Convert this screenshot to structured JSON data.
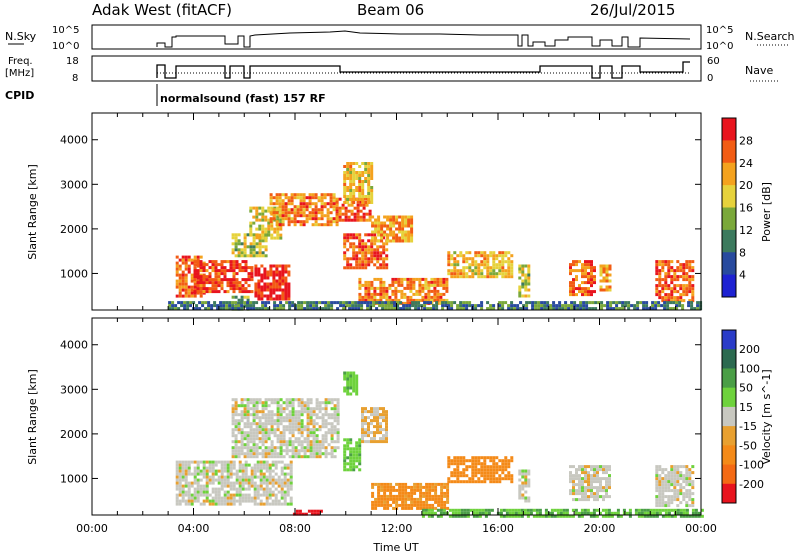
{
  "header": {
    "station": "Adak West (fitACF)",
    "beam": "Beam 06",
    "date": "26/Jul/2015"
  },
  "top_panels": {
    "nsky_label": "N.Sky",
    "nsky_ticks": [
      "10^5",
      "10^0"
    ],
    "nsearch_label": "N.Search",
    "nsearch_ticks": [
      "10^5",
      "10^0"
    ],
    "freq_label_line1": "Freq.",
    "freq_label_line2": "[MHz]",
    "freq_ticks": [
      "18",
      "8"
    ],
    "nave_label": "Nave",
    "nave_ticks": [
      "60",
      "0"
    ],
    "cpid_label": "CPID",
    "cpid_text": "normalsound (fast) 157 RF"
  },
  "colorbars": {
    "power": {
      "title": "Power [dB]",
      "ticks": [
        "28",
        "24",
        "20",
        "16",
        "12",
        "8",
        "4"
      ],
      "colors": [
        "#e8141e",
        "#f25c14",
        "#f4a21e",
        "#e6d23c",
        "#7aa83a",
        "#3c7a5e",
        "#284a9e",
        "#1e22d2"
      ]
    },
    "velocity": {
      "title": "Velocity [m s^-1]",
      "ticks": [
        "200",
        "100",
        "50",
        "15",
        "-15",
        "-50",
        "-100",
        "-200"
      ],
      "colors": [
        "#2a3cc8",
        "#2c6a50",
        "#4a9e46",
        "#6ed23c",
        "#c8c8c0",
        "#e8a030",
        "#f48a18",
        "#f46a14",
        "#e8141e"
      ]
    }
  },
  "chart_data": [
    {
      "type": "heatmap",
      "panel": "power",
      "ylabel": "Slant Range [km]",
      "yticks": [
        1000,
        2000,
        3000,
        4000
      ],
      "ylim": [
        180,
        4600
      ],
      "xlim_hours": [
        0,
        24
      ],
      "units": "dB",
      "regions": [
        {
          "t": [
            3.3,
            4.4
          ],
          "r": [
            500,
            1400
          ],
          "level": 24
        },
        {
          "t": [
            4.0,
            6.3
          ],
          "r": [
            600,
            1300
          ],
          "level": 26
        },
        {
          "t": [
            6.4,
            7.8
          ],
          "r": [
            450,
            1200
          ],
          "level": 28
        },
        {
          "t": [
            5.5,
            6.2
          ],
          "r": [
            200,
            500
          ],
          "level": 10
        },
        {
          "t": [
            5.5,
            6.9
          ],
          "r": [
            1400,
            1900
          ],
          "level": 14
        },
        {
          "t": [
            6.2,
            7.5
          ],
          "r": [
            1800,
            2500
          ],
          "level": 16
        },
        {
          "t": [
            7.0,
            9.7
          ],
          "r": [
            2100,
            2800
          ],
          "level": 22
        },
        {
          "t": [
            9.6,
            11.0
          ],
          "r": [
            2200,
            2700
          ],
          "level": 24
        },
        {
          "t": [
            9.9,
            11.6
          ],
          "r": [
            1100,
            1900
          ],
          "level": 24
        },
        {
          "t": [
            9.9,
            11.0
          ],
          "r": [
            2600,
            3500
          ],
          "level": 18
        },
        {
          "t": [
            11.0,
            12.6
          ],
          "r": [
            1700,
            2300
          ],
          "level": 20
        },
        {
          "t": [
            10.5,
            14.0
          ],
          "r": [
            350,
            900
          ],
          "level": 22
        },
        {
          "t": [
            14.0,
            16.5
          ],
          "r": [
            900,
            1500
          ],
          "level": 18
        },
        {
          "t": [
            16.8,
            17.2
          ],
          "r": [
            500,
            1200
          ],
          "level": 14
        },
        {
          "t": [
            18.8,
            19.8
          ],
          "r": [
            500,
            1300
          ],
          "level": 24
        },
        {
          "t": [
            20.0,
            20.4
          ],
          "r": [
            600,
            1200
          ],
          "level": 20
        },
        {
          "t": [
            22.2,
            23.7
          ],
          "r": [
            400,
            1300
          ],
          "level": 24
        },
        {
          "t": [
            3.0,
            24.0
          ],
          "r": [
            180,
            380
          ],
          "level": 8
        }
      ]
    },
    {
      "type": "heatmap",
      "panel": "velocity",
      "ylabel": "Slant Range [km]",
      "xlabel": "Time UT",
      "xticks": [
        "00:00",
        "04:00",
        "08:00",
        "12:00",
        "16:00",
        "20:00",
        "00:00"
      ],
      "yticks": [
        1000,
        2000,
        3000,
        4000
      ],
      "ylim": [
        180,
        4600
      ],
      "xlim_hours": [
        0,
        24
      ],
      "units": "m s^-1",
      "regions": [
        {
          "t": [
            3.3,
            7.8
          ],
          "r": [
            450,
            1400
          ],
          "v": 0
        },
        {
          "t": [
            5.5,
            9.7
          ],
          "r": [
            1500,
            2800
          ],
          "v": 0
        },
        {
          "t": [
            9.9,
            10.4
          ],
          "r": [
            2900,
            3400
          ],
          "v": 40
        },
        {
          "t": [
            9.9,
            10.6
          ],
          "r": [
            1200,
            1900
          ],
          "v": 40
        },
        {
          "t": [
            10.6,
            11.6
          ],
          "r": [
            1800,
            2600
          ],
          "v": -20
        },
        {
          "t": [
            11.0,
            14.0
          ],
          "r": [
            350,
            900
          ],
          "v": -60
        },
        {
          "t": [
            14.0,
            16.5
          ],
          "r": [
            900,
            1500
          ],
          "v": -80
        },
        {
          "t": [
            16.8,
            17.2
          ],
          "r": [
            500,
            1200
          ],
          "v": 0
        },
        {
          "t": [
            18.8,
            20.4
          ],
          "r": [
            500,
            1300
          ],
          "v": 0
        },
        {
          "t": [
            22.2,
            23.7
          ],
          "r": [
            400,
            1300
          ],
          "v": 0
        },
        {
          "t": [
            7.8,
            9.0
          ],
          "r": [
            180,
            300
          ],
          "v": -250
        },
        {
          "t": [
            13.0,
            24.0
          ],
          "r": [
            180,
            320
          ],
          "v": 50
        }
      ]
    }
  ]
}
